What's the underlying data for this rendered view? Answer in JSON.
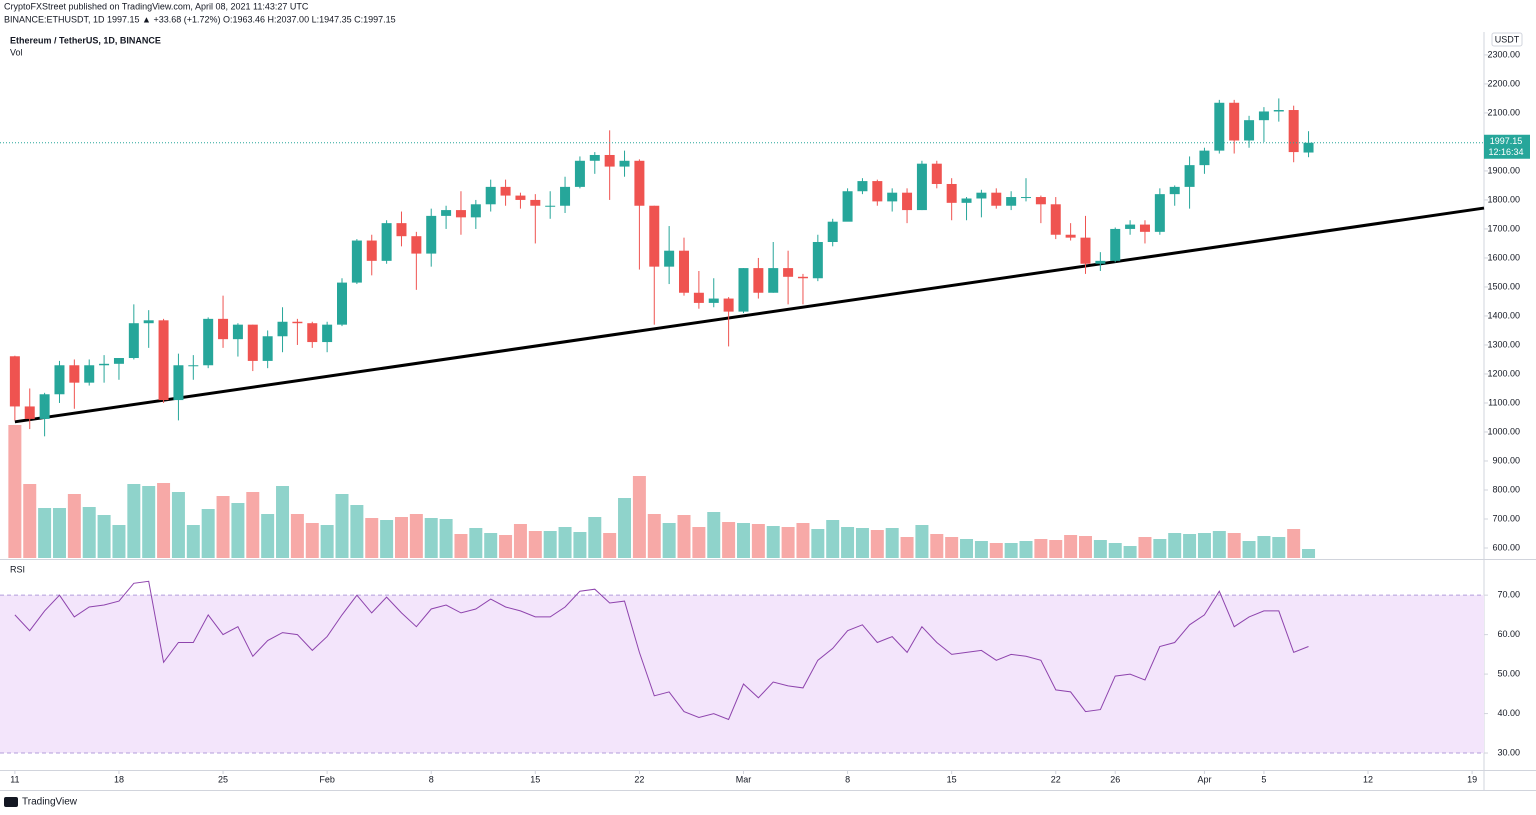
{
  "header": {
    "publisher": "CryptoFXStreet published on TradingView.com, April 08, 2021 11:43:27 UTC",
    "symbol_line": "BINANCE:ETHUSDT, 1D  1997.15 ▲ +33.68 (+1.72%) O:1963.46 H:2037.00 L:1947.35 C:1997.15"
  },
  "footer": {
    "logo": "TradingView"
  },
  "chart_data": [
    {
      "type": "candlestick",
      "title": "Ethereum / TetherUS, 1D, BINANCE",
      "volume_label": "Vol",
      "unit": "USDT",
      "countdown": "12:16:34",
      "up_color": "#26a69a",
      "down_color": "#ef5350",
      "volume_up_color": "#8fd3cb",
      "volume_down_color": "#f7a9a7",
      "xlim": [
        -1,
        98.8
      ],
      "xticks": [
        {
          "value": 0,
          "label": "11"
        },
        {
          "value": 7,
          "label": "18"
        },
        {
          "value": 14,
          "label": "25"
        },
        {
          "value": 21,
          "label": "Feb"
        },
        {
          "value": 28,
          "label": "8"
        },
        {
          "value": 35,
          "label": "15"
        },
        {
          "value": 42,
          "label": "22"
        },
        {
          "value": 49,
          "label": "Mar"
        },
        {
          "value": 56,
          "label": "8"
        },
        {
          "value": 63,
          "label": "15"
        },
        {
          "value": 70,
          "label": "22"
        },
        {
          "value": 74,
          "label": "26"
        },
        {
          "value": 80,
          "label": "Apr"
        },
        {
          "value": 84,
          "label": "5"
        },
        {
          "value": 91,
          "label": "12"
        },
        {
          "value": 98,
          "label": "19"
        }
      ],
      "ylim": [
        565.5,
        2379
      ],
      "yticks": [
        {
          "value": 600,
          "label": "600.00"
        },
        {
          "value": 700,
          "label": "700.00"
        },
        {
          "value": 800,
          "label": "800.00"
        },
        {
          "value": 900,
          "label": "900.00"
        },
        {
          "value": 1000,
          "label": "1000.00"
        },
        {
          "value": 1100,
          "label": "1100.00"
        },
        {
          "value": 1200,
          "label": "1200.00"
        },
        {
          "value": 1300,
          "label": "1300.00"
        },
        {
          "value": 1400,
          "label": "1400.00"
        },
        {
          "value": 1500,
          "label": "1500.00"
        },
        {
          "value": 1600,
          "label": "1600.00"
        },
        {
          "value": 1700,
          "label": "1700.00"
        },
        {
          "value": 1800,
          "label": "1800.00"
        },
        {
          "value": 1900,
          "label": "1900.00"
        },
        {
          "value": 2000,
          "label": "2000.00"
        },
        {
          "value": 2100,
          "label": "2100.00"
        },
        {
          "value": 2200,
          "label": "2200.00"
        },
        {
          "value": 2300,
          "label": "2300.00"
        }
      ],
      "open": [
        1261,
        1088,
        1045,
        1130,
        1230,
        1170,
        1230,
        1235,
        1255,
        1375,
        1385,
        1110,
        1230,
        1230,
        1390,
        1320,
        1370,
        1245,
        1330,
        1380,
        1375,
        1310,
        1370,
        1515,
        1660,
        1590,
        1720,
        1675,
        1615,
        1745,
        1765,
        1740,
        1785,
        1845,
        1815,
        1800,
        1780,
        1780,
        1845,
        1935,
        1955,
        1915,
        1935,
        1780,
        1570,
        1625,
        1480,
        1445,
        1460,
        1415,
        1565,
        1480,
        1565,
        1535,
        1530,
        1655,
        1725,
        1830,
        1865,
        1795,
        1825,
        1765,
        1925,
        1855,
        1790,
        1805,
        1825,
        1780,
        1810,
        1810,
        1785,
        1680,
        1670,
        1580,
        1590,
        1700,
        1715,
        1690,
        1820,
        1845,
        1920,
        1970,
        2135,
        2005,
        2075,
        2105,
        2110,
        1963.46
      ],
      "high": [
        1263,
        1150,
        1135,
        1245,
        1250,
        1250,
        1265,
        1255,
        1440,
        1420,
        1390,
        1270,
        1265,
        1395,
        1470,
        1375,
        1370,
        1350,
        1430,
        1390,
        1380,
        1380,
        1530,
        1665,
        1680,
        1730,
        1760,
        1690,
        1770,
        1780,
        1830,
        1800,
        1870,
        1870,
        1825,
        1820,
        1830,
        1880,
        1950,
        1965,
        2040,
        1970,
        1940,
        1780,
        1710,
        1670,
        1555,
        1530,
        1465,
        1565,
        1600,
        1655,
        1625,
        1545,
        1680,
        1735,
        1840,
        1875,
        1870,
        1840,
        1840,
        1935,
        1935,
        1875,
        1810,
        1835,
        1840,
        1830,
        1875,
        1815,
        1810,
        1720,
        1745,
        1620,
        1705,
        1730,
        1730,
        1840,
        1850,
        1950,
        1980,
        2145,
        2145,
        2090,
        2120,
        2150,
        2125,
        2037
      ],
      "low": [
        1040,
        1010,
        985,
        1100,
        1080,
        1160,
        1170,
        1180,
        1250,
        1290,
        1100,
        1040,
        1180,
        1220,
        1290,
        1260,
        1210,
        1220,
        1275,
        1300,
        1290,
        1275,
        1365,
        1510,
        1540,
        1580,
        1640,
        1490,
        1570,
        1700,
        1680,
        1700,
        1760,
        1780,
        1770,
        1650,
        1735,
        1755,
        1840,
        1890,
        1800,
        1880,
        1560,
        1370,
        1510,
        1470,
        1425,
        1430,
        1295,
        1410,
        1460,
        1480,
        1440,
        1440,
        1520,
        1640,
        1730,
        1820,
        1780,
        1760,
        1720,
        1765,
        1840,
        1730,
        1730,
        1740,
        1770,
        1765,
        1795,
        1720,
        1665,
        1660,
        1545,
        1555,
        1585,
        1680,
        1650,
        1680,
        1780,
        1770,
        1890,
        1960,
        1960,
        1980,
        2000,
        2070,
        1930,
        1947.35
      ],
      "close": [
        1088,
        1045,
        1130,
        1230,
        1170,
        1230,
        1235,
        1255,
        1375,
        1385,
        1110,
        1230,
        1230,
        1390,
        1320,
        1370,
        1245,
        1330,
        1380,
        1375,
        1310,
        1370,
        1515,
        1660,
        1590,
        1720,
        1675,
        1615,
        1745,
        1765,
        1740,
        1785,
        1845,
        1815,
        1800,
        1780,
        1780,
        1845,
        1935,
        1955,
        1915,
        1935,
        1780,
        1570,
        1625,
        1480,
        1445,
        1460,
        1415,
        1565,
        1480,
        1565,
        1535,
        1530,
        1655,
        1725,
        1830,
        1865,
        1795,
        1825,
        1765,
        1925,
        1855,
        1790,
        1805,
        1825,
        1780,
        1810,
        1810,
        1785,
        1680,
        1670,
        1580,
        1590,
        1700,
        1715,
        1690,
        1820,
        1845,
        1920,
        1970,
        2135,
        2005,
        2075,
        2105,
        2110,
        1965,
        1997.15
      ],
      "volume": [
        133,
        74,
        50,
        50,
        64,
        51,
        43,
        33,
        74,
        72,
        75,
        66,
        33,
        49,
        62,
        55,
        66,
        44,
        72,
        44,
        35,
        33,
        64,
        53,
        40,
        38,
        41,
        44,
        40,
        39,
        24,
        30,
        25,
        23,
        34,
        27,
        27,
        31,
        26,
        41,
        25,
        60,
        82,
        44,
        35,
        43,
        31,
        46,
        36,
        35,
        34,
        32,
        31,
        35,
        29,
        38,
        31,
        30,
        28,
        30,
        21,
        33,
        24,
        21,
        19,
        17,
        15,
        15,
        17,
        19,
        18,
        23,
        22,
        18,
        15,
        12,
        21,
        19,
        25,
        24,
        25,
        27,
        25,
        17,
        22,
        21,
        29,
        9
      ],
      "trendline": [
        [
          0,
          1035
        ],
        [
          98.8,
          1772
        ]
      ]
    },
    {
      "type": "line",
      "title": "RSI",
      "color": "#8e44ad",
      "band_color": "#f3e5fb",
      "ylim": [
        25.7,
        78.4
      ],
      "yticks": [
        {
          "value": 30,
          "label": "30.00"
        },
        {
          "value": 40,
          "label": "40.00"
        },
        {
          "value": 50,
          "label": "50.00"
        },
        {
          "value": 60,
          "label": "60.00"
        },
        {
          "value": 70,
          "label": "70.00"
        }
      ],
      "band": [
        30,
        70
      ],
      "values": [
        65,
        61,
        66,
        70,
        64.5,
        67,
        67.5,
        68.5,
        73,
        73.5,
        53,
        58,
        58,
        65,
        60,
        62,
        54.5,
        58.5,
        60.5,
        60,
        56,
        59.5,
        65,
        70,
        65.5,
        69.5,
        65.5,
        62,
        66.5,
        67.5,
        65.5,
        66.5,
        69,
        67,
        66,
        64.5,
        64.5,
        67,
        71,
        71.5,
        68,
        68.5,
        55.5,
        44.5,
        45.5,
        40.5,
        39,
        40,
        38.5,
        47.5,
        44,
        48,
        47,
        46.5,
        53.5,
        56.5,
        61,
        62.5,
        58,
        59.5,
        55.5,
        62,
        58,
        55,
        55.5,
        56,
        53.5,
        55,
        54.5,
        53.5,
        46,
        45.5,
        40.5,
        41,
        49.5,
        50,
        48.5,
        57,
        58,
        62.5,
        65,
        71,
        62,
        64.5,
        66,
        66,
        55.5,
        57
      ]
    }
  ]
}
